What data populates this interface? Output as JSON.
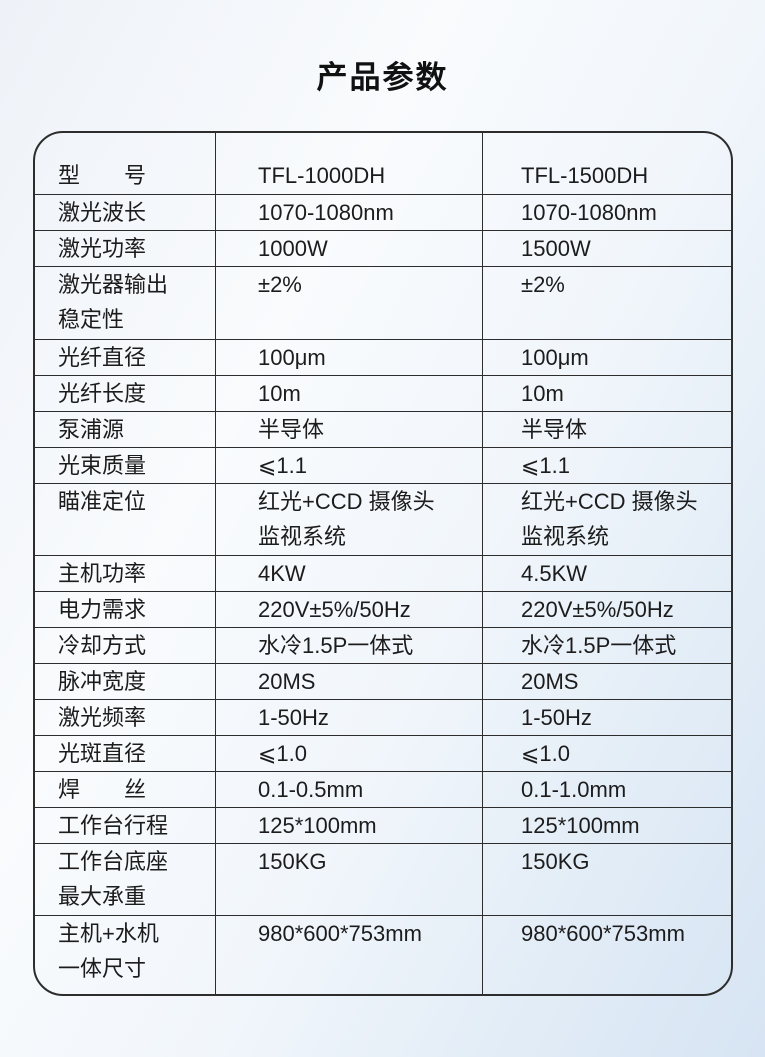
{
  "page": {
    "title": "产品参数"
  },
  "table": {
    "header": {
      "label": "型　　号",
      "model_1": "TFL-1000DH",
      "model_2": "TFL-1500DH"
    },
    "rows": [
      {
        "label": "激光波长",
        "v1": "1070-1080nm",
        "v2": "1070-1080nm"
      },
      {
        "label": "激光功率",
        "v1": "1000W",
        "v2": "1500W"
      },
      {
        "label": "激光器输出\n稳定性",
        "v1": "±2%",
        "v2": "±2%"
      },
      {
        "label": "光纤直径",
        "v1": "100μm",
        "v2": "100μm"
      },
      {
        "label": "光纤长度",
        "v1": "10m",
        "v2": "10m"
      },
      {
        "label": "泵浦源",
        "v1": "半导体",
        "v2": "半导体"
      },
      {
        "label": "光束质量",
        "v1": "⩽1.1",
        "v2": "⩽1.1"
      },
      {
        "label": "瞄准定位",
        "v1": "红光+CCD 摄像头\n监视系统",
        "v2": "红光+CCD 摄像头\n监视系统"
      },
      {
        "label": "主机功率",
        "v1": "4KW",
        "v2": "4.5KW"
      },
      {
        "label": "电力需求",
        "v1": "220V±5%/50Hz",
        "v2": "220V±5%/50Hz"
      },
      {
        "label": "冷却方式",
        "v1": "水冷1.5P一体式",
        "v2": "水冷1.5P一体式"
      },
      {
        "label": "脉冲宽度",
        "v1": "20MS",
        "v2": "20MS"
      },
      {
        "label": "激光频率",
        "v1": "1-50Hz",
        "v2": "1-50Hz"
      },
      {
        "label": "光斑直径",
        "v1": "⩽1.0",
        "v2": "⩽1.0"
      },
      {
        "label": "焊　　丝",
        "v1": "0.1-0.5mm",
        "v2": "0.1-1.0mm"
      },
      {
        "label": "工作台行程",
        "v1": "125*100mm",
        "v2": "125*100mm"
      },
      {
        "label": "工作台底座\n最大承重",
        "v1": "150KG",
        "v2": "150KG"
      },
      {
        "label": "主机+水机\n一体尺寸",
        "v1": "980*600*753mm",
        "v2": "980*600*753mm"
      }
    ]
  }
}
